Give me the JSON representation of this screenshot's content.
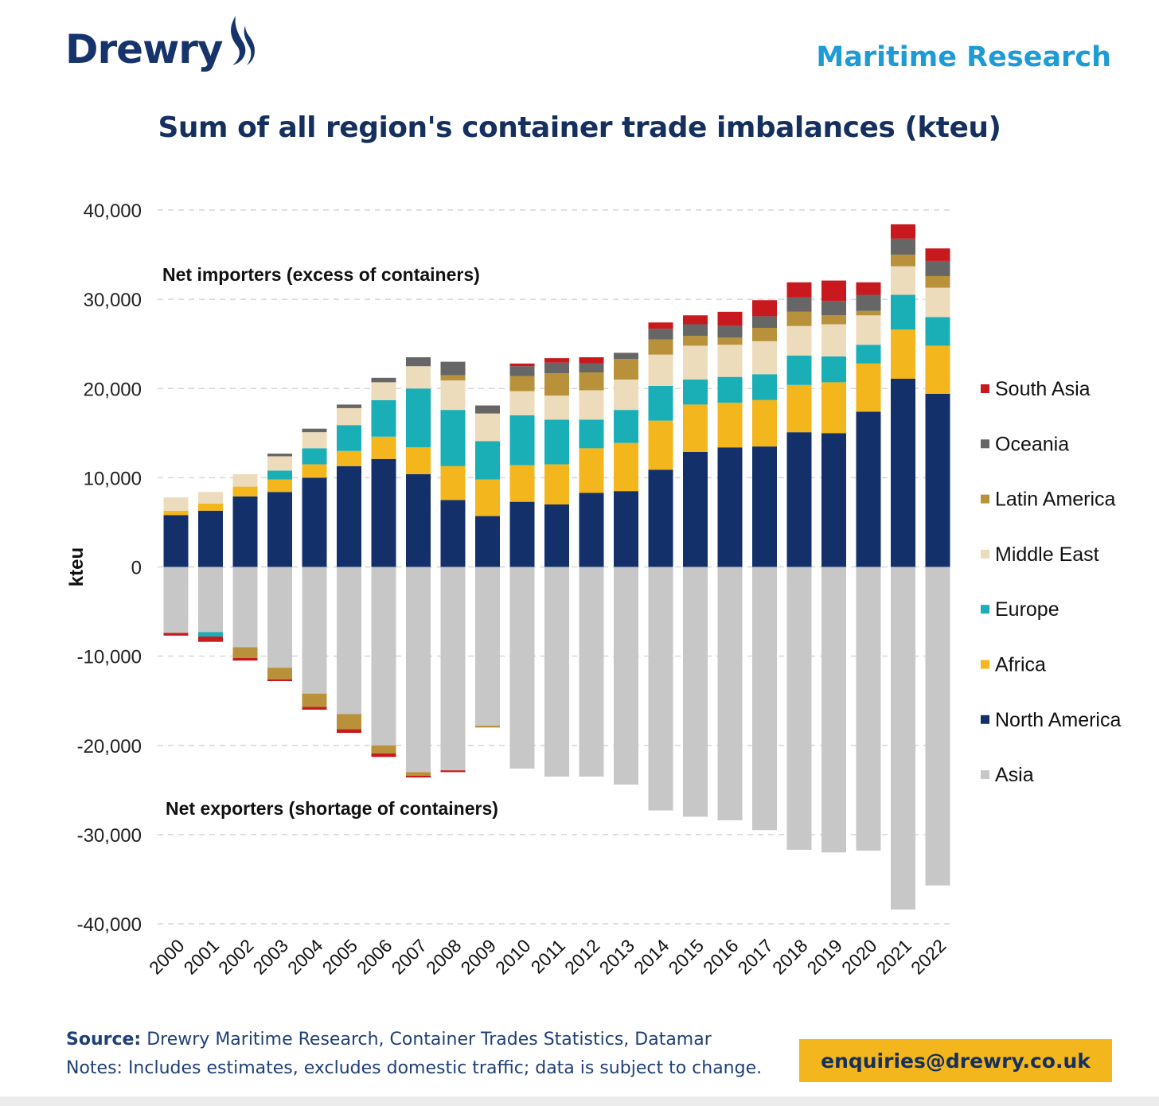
{
  "header": {
    "brand": "Drewry",
    "division": "Maritime Research"
  },
  "footer": {
    "source_label": "Source:",
    "source_text": " Drewry Maritime Research, Container Trades Statistics, Datamar",
    "notes": "Notes: Includes estimates, excludes domestic traffic; data is subject to change.",
    "email": "enquiries@drewry.co.uk"
  },
  "colors": {
    "brand_navy": "#16336b",
    "brand_blue": "#1d9bd6",
    "email_bg": "#f3b61c"
  },
  "chart_data": {
    "type": "bar",
    "stacked": true,
    "title": "Sum of all region's container trade imbalances (kteu)",
    "ylabel": "kteu",
    "xlabel": "",
    "ylim": [
      -40000,
      40000
    ],
    "yticks": [
      40000,
      30000,
      20000,
      10000,
      0,
      -10000,
      -20000,
      -30000,
      -40000
    ],
    "ytick_labels": [
      "40,000",
      "30,000",
      "20,000",
      "10,000",
      "0",
      "-10,000",
      "-20,000",
      "-30,000",
      "-40,000"
    ],
    "grid": true,
    "legend_position": "right",
    "annotations": [
      {
        "text": "Net importers (excess of containers)"
      },
      {
        "text": "Net exporters (shortage of containers)"
      }
    ],
    "categories": [
      "2000",
      "2001",
      "2002",
      "2003",
      "2004",
      "2005",
      "2006",
      "2007",
      "2008",
      "2009",
      "2010",
      "2011",
      "2012",
      "2013",
      "2014",
      "2015",
      "2016",
      "2017",
      "2018",
      "2019",
      "2020",
      "2021",
      "2022"
    ],
    "legend": [
      "South Asia",
      "Oceania",
      "Latin America",
      "Middle East",
      "Europe",
      "Africa",
      "North America",
      "Asia"
    ],
    "series": [
      {
        "name": "North America",
        "color": "#13306b",
        "values": [
          5800,
          6300,
          7900,
          8400,
          10000,
          11300,
          12100,
          10400,
          7500,
          5700,
          7300,
          7000,
          8300,
          8500,
          10900,
          12900,
          13400,
          13500,
          15100,
          15000,
          17400,
          21100,
          19400
        ]
      },
      {
        "name": "Africa",
        "color": "#f3b61c",
        "values": [
          500,
          800,
          1100,
          1400,
          1500,
          1700,
          2500,
          3000,
          3800,
          4100,
          4100,
          4500,
          5000,
          5400,
          5500,
          5300,
          5000,
          5200,
          5300,
          5700,
          5400,
          5500,
          5400
        ]
      },
      {
        "name": "Europe",
        "color": "#1aaeb6",
        "values": [
          0,
          0,
          0,
          1000,
          1800,
          2900,
          4100,
          6600,
          6300,
          4300,
          5600,
          5000,
          3200,
          3700,
          3900,
          2800,
          2900,
          2900,
          3300,
          2900,
          2100,
          3900,
          3200
        ]
      },
      {
        "name": "Middle East",
        "color": "#eddcbc",
        "values": [
          1500,
          1300,
          1400,
          1600,
          1800,
          1900,
          2000,
          2500,
          3300,
          3100,
          2700,
          2700,
          3300,
          3400,
          3500,
          3800,
          3600,
          3700,
          3300,
          3600,
          3300,
          3200,
          3300
        ]
      },
      {
        "name": "Latin America",
        "color": "#b8913a",
        "values": [
          0,
          0,
          0,
          0,
          0,
          0,
          0,
          0,
          600,
          0,
          1700,
          2500,
          2000,
          2300,
          1700,
          1100,
          800,
          1500,
          1600,
          1000,
          500,
          1300,
          1300
        ]
      },
      {
        "name": "Oceania",
        "color": "#666666",
        "values": [
          0,
          0,
          0,
          300,
          400,
          400,
          500,
          1000,
          1500,
          900,
          1100,
          1200,
          1000,
          700,
          1200,
          1300,
          1300,
          1300,
          1600,
          1600,
          1800,
          1800,
          1700
        ]
      },
      {
        "name": "South Asia",
        "color": "#c8191f",
        "values": [
          0,
          0,
          0,
          0,
          0,
          0,
          0,
          0,
          0,
          0,
          300,
          500,
          700,
          0,
          700,
          1000,
          1600,
          1800,
          1700,
          2300,
          1400,
          1600,
          1400
        ]
      },
      {
        "name": "Asia",
        "color": "#c7c7c7",
        "values": [
          -7400,
          -7300,
          -9000,
          -11300,
          -14200,
          -16500,
          -20000,
          -23000,
          -22800,
          -17800,
          -22600,
          -23500,
          -23500,
          -24400,
          -27300,
          -28000,
          -28400,
          -29500,
          -31700,
          -32000,
          -31800,
          -38400,
          -35700
        ]
      },
      {
        "name": "Europe",
        "color": "#1aaeb6",
        "values": [
          0,
          -500,
          0,
          0,
          0,
          0,
          0,
          0,
          0,
          0,
          0,
          0,
          0,
          0,
          0,
          0,
          0,
          0,
          0,
          0,
          0,
          0,
          0
        ]
      },
      {
        "name": "Latin America",
        "color": "#b8913a",
        "values": [
          0,
          0,
          -1200,
          -1300,
          -1500,
          -1700,
          -900,
          -400,
          0,
          -200,
          0,
          0,
          0,
          0,
          0,
          0,
          0,
          0,
          0,
          0,
          0,
          0,
          0
        ]
      },
      {
        "name": "South Asia",
        "color": "#c8191f",
        "values": [
          -300,
          -600,
          -300,
          -200,
          -300,
          -400,
          -400,
          -200,
          -200,
          0,
          0,
          0,
          0,
          0,
          0,
          0,
          0,
          0,
          0,
          0,
          0,
          0,
          0
        ]
      }
    ],
    "legend_colors": [
      "#c8191f",
      "#666666",
      "#b8913a",
      "#eddcbc",
      "#1aaeb6",
      "#f3b61c",
      "#13306b",
      "#c7c7c7"
    ]
  }
}
